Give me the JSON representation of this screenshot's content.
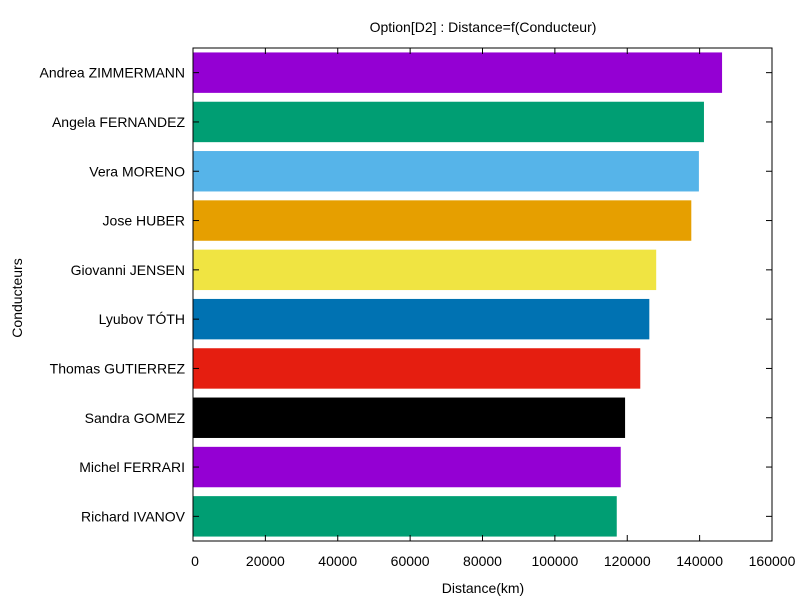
{
  "chart_data": {
    "type": "bar",
    "orientation": "horizontal",
    "title": "Option[D2] : Distance=f(Conducteur)",
    "xlabel": "Distance(km)",
    "ylabel": "Conducteurs",
    "xlim": [
      0,
      160000
    ],
    "x_ticks": [
      0,
      20000,
      40000,
      60000,
      80000,
      100000,
      120000,
      140000,
      160000
    ],
    "grid": false,
    "legend": "none",
    "categories": [
      "Andrea ZIMMERMANN",
      "Angela FERNANDEZ",
      "Vera MORENO",
      "Jose HUBER",
      "Giovanni JENSEN",
      "Lyubov TÓTH",
      "Thomas GUTIERREZ",
      "Sandra GOMEZ",
      "Michel FERRARI",
      "Richard IVANOV"
    ],
    "values": [
      146200,
      141200,
      139800,
      137700,
      128000,
      126100,
      123600,
      119400,
      118200,
      117100
    ],
    "colors": [
      "#9400d3",
      "#009e73",
      "#56b4e9",
      "#e69f00",
      "#f0e442",
      "#0072b2",
      "#e51e10",
      "#000000",
      "#9400d3",
      "#009e73"
    ]
  }
}
